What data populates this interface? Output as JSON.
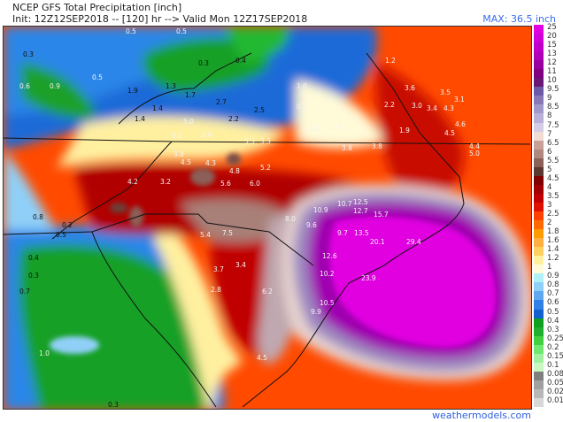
{
  "header": {
    "title": "NCEP GFS Total Precipitation [inch]",
    "init_line": "Init: 12Z12SEP2018 -- [120] hr --> Valid Mon 12Z17SEP2018",
    "max": "MAX: 36.5 inch"
  },
  "legend": [
    {
      "label": "25",
      "color": "#e000e0"
    },
    {
      "label": "20",
      "color": "#d000d8"
    },
    {
      "label": "15",
      "color": "#c000c8"
    },
    {
      "label": "13",
      "color": "#b000b8"
    },
    {
      "label": "12",
      "color": "#9a00a0"
    },
    {
      "label": "11",
      "color": "#800080"
    },
    {
      "label": "10",
      "color": "#6a1878"
    },
    {
      "label": "9.5",
      "color": "#6c5aa8"
    },
    {
      "label": "9",
      "color": "#8878b8"
    },
    {
      "label": "8.5",
      "color": "#a098c8"
    },
    {
      "label": "8",
      "color": "#b8b0d8"
    },
    {
      "label": "7.5",
      "color": "#d4cce4"
    },
    {
      "label": "7",
      "color": "#f0dcd4"
    },
    {
      "label": "6.5",
      "color": "#c8a098"
    },
    {
      "label": "6",
      "color": "#b08880"
    },
    {
      "label": "5.5",
      "color": "#8a6058"
    },
    {
      "label": "5",
      "color": "#5a3830"
    },
    {
      "label": "4.5",
      "color": "#800000"
    },
    {
      "label": "4",
      "color": "#a00000"
    },
    {
      "label": "3.5",
      "color": "#c00000"
    },
    {
      "label": "3",
      "color": "#e01000"
    },
    {
      "label": "2.5",
      "color": "#ff4000"
    },
    {
      "label": "2",
      "color": "#ff6a00"
    },
    {
      "label": "1.8",
      "color": "#ff9a00"
    },
    {
      "label": "1.6",
      "color": "#ffb040"
    },
    {
      "label": "1.4",
      "color": "#ffd060"
    },
    {
      "label": "1.2",
      "color": "#fff0a0"
    },
    {
      "label": "1",
      "color": "#fffad8"
    },
    {
      "label": "0.9",
      "color": "#b0f0f8"
    },
    {
      "label": "0.8",
      "color": "#90d0f8"
    },
    {
      "label": "0.7",
      "color": "#60a8f0"
    },
    {
      "label": "0.6",
      "color": "#3080e8"
    },
    {
      "label": "0.5",
      "color": "#1060d0"
    },
    {
      "label": "0.4",
      "color": "#10a020"
    },
    {
      "label": "0.3",
      "color": "#20b030"
    },
    {
      "label": "0.25",
      "color": "#40d040"
    },
    {
      "label": "0.2",
      "color": "#70e870"
    },
    {
      "label": "0.15",
      "color": "#a0f0a0"
    },
    {
      "label": "0.1",
      "color": "#c8f8c0"
    },
    {
      "label": "0.08",
      "color": "#808080"
    },
    {
      "label": "0.05",
      "color": "#a0a0a0"
    },
    {
      "label": "0.02",
      "color": "#b8b8b8"
    },
    {
      "label": "0.01",
      "color": "#d8d8d8"
    }
  ],
  "map_values": [
    "0.5",
    "0.5",
    "0.3",
    "0.3",
    "0.4",
    "0.5",
    "0.6",
    "0.9",
    "1.9",
    "1.3",
    "1.7",
    "2.7",
    "2.2",
    "2.5",
    "1.4",
    "1.4",
    "5.0",
    "5.2",
    "3.4",
    "3.3",
    "3.3",
    "3.8",
    "4.5",
    "4.3",
    "4.8",
    "5.2",
    "4.2",
    "3.2",
    "5.6",
    "6.0",
    "1.0",
    "1.2",
    "0.7",
    "2.2",
    "3.6",
    "3.0",
    "3.4",
    "4.3",
    "3.5",
    "3.1",
    "4.6",
    "4.5",
    "4.4",
    "5.0",
    "2.3",
    "1.5",
    "1.9",
    "3.8",
    "3.8",
    "10.7",
    "10.9",
    "12.5",
    "12.7",
    "15.7",
    "8.0",
    "9.6",
    "9.7",
    "13.5",
    "20.1",
    "29.4",
    "12.6",
    "10.2",
    "23.9",
    "10.5",
    "9.9",
    "7.5",
    "5.4",
    "6.2",
    "3.7",
    "3.4",
    "2.8",
    "4.5",
    "0.8",
    "0.2",
    "0.4",
    "0.3",
    "0.5",
    "0.7",
    "1.0",
    "0.4",
    "0.3",
    "0.4"
  ],
  "credit": "weathermodels.com"
}
